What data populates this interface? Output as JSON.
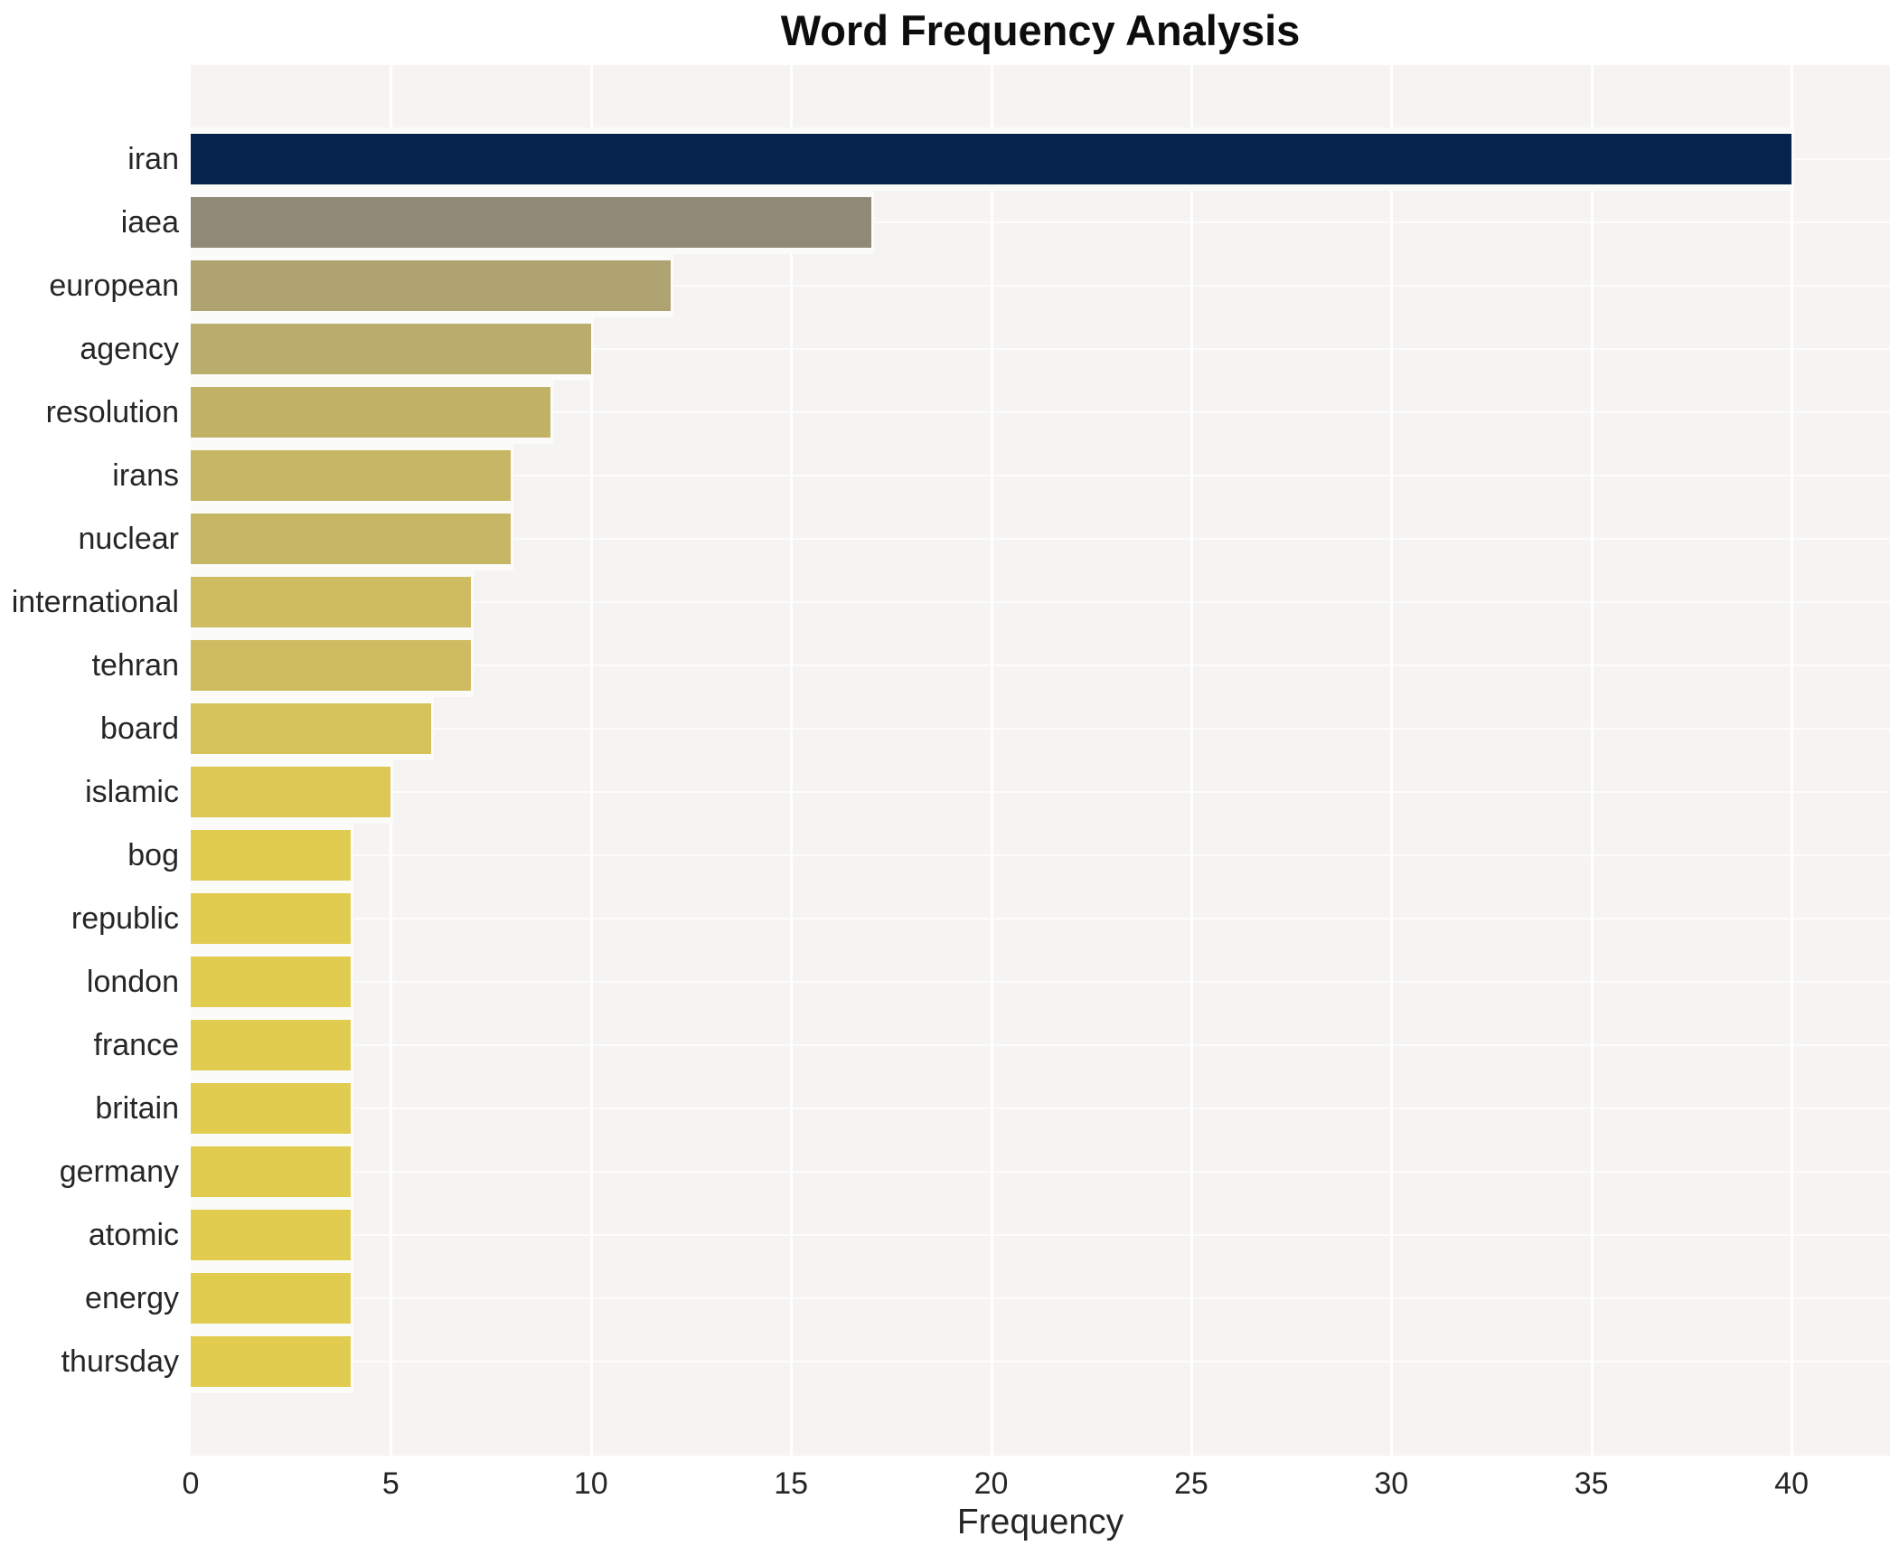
{
  "title": "Word Frequency Analysis",
  "xlabel": "Frequency",
  "chart_data": {
    "type": "bar",
    "orientation": "horizontal",
    "title": "Word Frequency Analysis",
    "xlabel": "Frequency",
    "ylabel": "",
    "categories": [
      "iran",
      "iaea",
      "european",
      "agency",
      "resolution",
      "irans",
      "nuclear",
      "international",
      "tehran",
      "board",
      "islamic",
      "bog",
      "republic",
      "london",
      "france",
      "britain",
      "germany",
      "atomic",
      "energy",
      "thursday"
    ],
    "values": [
      40,
      17,
      12,
      10,
      9,
      8,
      8,
      7,
      7,
      6,
      5,
      4,
      4,
      4,
      4,
      4,
      4,
      4,
      4,
      4
    ],
    "bar_colors": [
      "#05234c",
      "#8e8a77",
      "#aea371",
      "#b9ac6c",
      "#c2b266",
      "#c7b663",
      "#c7b663",
      "#cfbc60",
      "#cfbc60",
      "#d5c25b",
      "#dcc754",
      "#e2cc50",
      "#e2cc50",
      "#e2cc50",
      "#e2cc50",
      "#e2cc50",
      "#e2cc50",
      "#e2cc50",
      "#e2cc50",
      "#e2cc50"
    ],
    "x_ticks": [
      0,
      5,
      10,
      15,
      20,
      25,
      30,
      35,
      40
    ],
    "xlim": [
      0,
      42.46
    ],
    "grid": true,
    "legend": false,
    "plot_background": "#f5f4f2",
    "gridline_color": "#ffffff",
    "label_color": "#262626"
  }
}
